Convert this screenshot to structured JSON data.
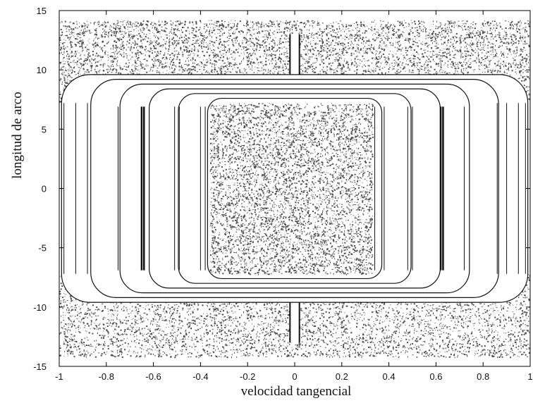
{
  "chart_data": {
    "type": "scatter",
    "title": "",
    "xlabel": "velocidad tangencial",
    "ylabel": "longitud de arco",
    "xlim": [
      -1,
      1
    ],
    "ylim": [
      -15,
      15
    ],
    "xticks": [
      -1,
      -0.8,
      -0.6,
      -0.4,
      -0.2,
      0,
      0.2,
      0.4,
      0.6,
      0.8,
      1
    ],
    "xtick_labels": [
      "-1",
      "-0.8",
      "-0.6",
      "-0.4",
      "-0.2",
      "0",
      "0.2",
      "0.4",
      "0.6",
      "0.8",
      "1"
    ],
    "yticks": [
      -15,
      -10,
      -5,
      0,
      5,
      10,
      15
    ],
    "ytick_labels": [
      "-15",
      "-10",
      "-5",
      "0",
      "5",
      "10",
      "15"
    ],
    "grid": false,
    "legend": "none",
    "colors": {
      "points": "#111111",
      "background": "#ffffff",
      "axes": "#000000"
    },
    "regions": {
      "chaotic_top": {
        "x": [
          -1,
          1
        ],
        "y": [
          7.2,
          14.2
        ]
      },
      "chaotic_bottom": {
        "x": [
          -1,
          1
        ],
        "y": [
          -14.2,
          -7.2
        ]
      },
      "chaotic_center": {
        "x": [
          -0.36,
          0.33
        ],
        "y": [
          -7.2,
          7.2
        ]
      },
      "invariant_vertical_lines_x": [
        -0.98,
        -0.93,
        -0.88,
        -0.75,
        -0.65,
        -0.64,
        -0.51,
        -0.49,
        -0.4,
        -0.38,
        0.34,
        0.38,
        0.48,
        0.5,
        0.62,
        0.63,
        0.72,
        0.86,
        0.9,
        0.95,
        0.98
      ],
      "invariant_loop_heights": [
        9.6,
        9.2,
        8.8,
        8.4,
        8.0,
        7.6
      ],
      "island_columns_x": [
        -0.02,
        0.02
      ]
    }
  }
}
